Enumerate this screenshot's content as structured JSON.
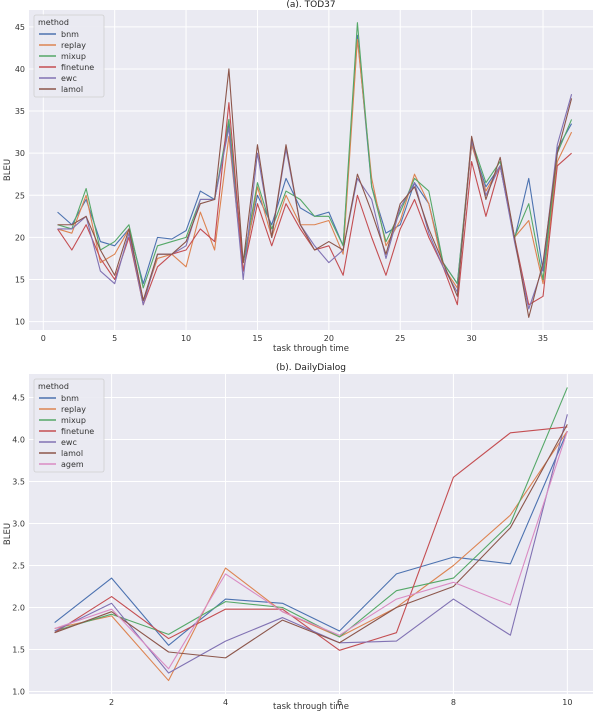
{
  "chart_data": [
    {
      "type": "line",
      "title": "(a). TOD37",
      "xlabel": "task through time",
      "ylabel": "BLEU",
      "xlim": [
        -1,
        38.5
      ],
      "ylim": [
        9,
        47
      ],
      "xticks": [
        0,
        5,
        10,
        15,
        20,
        25,
        30,
        35
      ],
      "yticks": [
        10,
        15,
        20,
        25,
        30,
        35,
        40,
        45
      ],
      "grid": true,
      "legend": {
        "title": "method",
        "placement": "top-left"
      },
      "x": [
        1,
        2,
        3,
        4,
        5,
        6,
        7,
        8,
        9,
        10,
        11,
        12,
        13,
        14,
        15,
        16,
        17,
        18,
        19,
        20,
        21,
        22,
        23,
        24,
        25,
        26,
        27,
        28,
        29,
        30,
        31,
        32,
        33,
        34,
        35,
        36,
        37
      ],
      "series": [
        {
          "name": "bnm",
          "color": "#4c72b0",
          "values": [
            23.0,
            21.5,
            24.5,
            19.5,
            19.0,
            21.0,
            14.5,
            20.0,
            19.8,
            20.8,
            25.5,
            24.5,
            33.5,
            17.0,
            25.0,
            21.5,
            27.0,
            23.5,
            22.5,
            23.0,
            19.0,
            44.0,
            26.0,
            20.5,
            21.5,
            26.5,
            24.0,
            17.0,
            14.5,
            31.0,
            26.0,
            28.5,
            19.8,
            27.0,
            16.0,
            30.5,
            33.5
          ]
        },
        {
          "name": "replay",
          "color": "#dd8452",
          "values": [
            21.0,
            20.5,
            25.0,
            17.0,
            18.0,
            21.0,
            12.5,
            17.5,
            18.0,
            16.5,
            23.0,
            18.5,
            32.0,
            16.0,
            26.0,
            20.0,
            25.0,
            21.5,
            21.5,
            22.0,
            18.0,
            43.5,
            27.0,
            19.0,
            22.0,
            27.5,
            24.0,
            16.5,
            14.0,
            31.0,
            25.5,
            28.5,
            20.0,
            22.0,
            14.5,
            29.0,
            32.5
          ]
        },
        {
          "name": "mixup",
          "color": "#55a868",
          "values": [
            21.5,
            21.0,
            25.8,
            18.5,
            19.5,
            21.5,
            14.0,
            19.0,
            19.5,
            20.0,
            24.5,
            24.5,
            34.0,
            17.0,
            26.5,
            21.0,
            25.5,
            24.5,
            22.5,
            22.5,
            19.0,
            45.5,
            26.0,
            19.5,
            23.0,
            27.0,
            25.5,
            17.0,
            14.5,
            31.5,
            26.5,
            29.0,
            20.0,
            24.0,
            15.0,
            30.0,
            34.0
          ]
        },
        {
          "name": "finetune",
          "color": "#c44e52",
          "values": [
            21.0,
            18.5,
            21.5,
            17.5,
            15.0,
            20.0,
            12.0,
            16.5,
            18.0,
            18.5,
            21.0,
            19.5,
            36.0,
            16.0,
            24.0,
            19.0,
            24.0,
            21.0,
            18.5,
            19.0,
            15.5,
            25.0,
            20.0,
            15.5,
            21.0,
            24.5,
            20.0,
            16.5,
            12.0,
            29.0,
            22.5,
            28.5,
            20.0,
            12.0,
            13.0,
            28.5,
            30.0
          ]
        },
        {
          "name": "ewc",
          "color": "#8172b3",
          "values": [
            21.0,
            21.0,
            22.5,
            16.0,
            14.5,
            20.5,
            12.0,
            18.0,
            18.0,
            19.0,
            24.5,
            24.5,
            33.0,
            15.0,
            30.0,
            20.0,
            30.5,
            21.5,
            19.0,
            17.0,
            18.5,
            27.0,
            24.5,
            17.5,
            23.5,
            26.5,
            20.5,
            16.5,
            13.5,
            31.5,
            25.0,
            28.5,
            19.5,
            11.5,
            16.5,
            31.0,
            37.0
          ]
        },
        {
          "name": "lamol",
          "color": "#8c564b",
          "values": [
            21.5,
            21.5,
            22.5,
            18.5,
            15.5,
            21.0,
            12.5,
            18.0,
            18.0,
            19.5,
            24.0,
            24.5,
            40.0,
            17.0,
            31.0,
            20.0,
            31.0,
            21.5,
            18.5,
            19.5,
            18.5,
            27.5,
            23.0,
            18.0,
            24.0,
            26.0,
            21.0,
            17.0,
            13.0,
            32.0,
            24.5,
            29.5,
            20.0,
            10.5,
            17.0,
            30.0,
            36.5
          ]
        }
      ]
    },
    {
      "type": "line",
      "title": "(b). DailyDialog",
      "xlabel": "task through time",
      "ylabel": "BLEU",
      "xlim": [
        0.55,
        10.45
      ],
      "ylim": [
        0.97,
        4.78
      ],
      "xticks": [
        2,
        4,
        6,
        8,
        10
      ],
      "yticks": [
        1.0,
        1.5,
        2.0,
        2.5,
        3.0,
        3.5,
        4.0,
        4.5
      ],
      "grid": true,
      "legend": {
        "title": "method",
        "placement": "top-left"
      },
      "x": [
        1,
        2,
        3,
        4,
        5,
        6,
        7,
        8,
        9,
        10
      ],
      "series": [
        {
          "name": "bnm",
          "color": "#4c72b0",
          "values": [
            1.82,
            2.35,
            1.55,
            2.1,
            2.05,
            1.72,
            2.4,
            2.6,
            2.52,
            4.1
          ]
        },
        {
          "name": "replay",
          "color": "#dd8452",
          "values": [
            1.75,
            1.9,
            1.13,
            2.47,
            1.95,
            1.65,
            2.0,
            2.5,
            3.1,
            4.1
          ]
        },
        {
          "name": "mixup",
          "color": "#55a868",
          "values": [
            1.72,
            1.92,
            1.68,
            2.07,
            2.0,
            1.65,
            2.2,
            2.35,
            3.0,
            4.62
          ]
        },
        {
          "name": "finetune",
          "color": "#c44e52",
          "values": [
            1.7,
            2.13,
            1.63,
            1.98,
            1.98,
            1.49,
            1.7,
            3.55,
            4.08,
            4.15
          ]
        },
        {
          "name": "ewc",
          "color": "#8172b3",
          "values": [
            1.72,
            2.05,
            1.22,
            1.6,
            1.88,
            1.58,
            1.6,
            2.1,
            1.67,
            4.3
          ]
        },
        {
          "name": "lamol",
          "color": "#8c564b",
          "values": [
            1.7,
            1.95,
            1.47,
            1.4,
            1.85,
            1.58,
            2.0,
            2.25,
            2.95,
            4.18
          ]
        },
        {
          "name": "agem",
          "color": "#da8bc3",
          "values": [
            1.75,
            1.98,
            1.27,
            2.4,
            1.95,
            1.67,
            2.1,
            2.3,
            2.03,
            4.1
          ]
        }
      ]
    }
  ]
}
